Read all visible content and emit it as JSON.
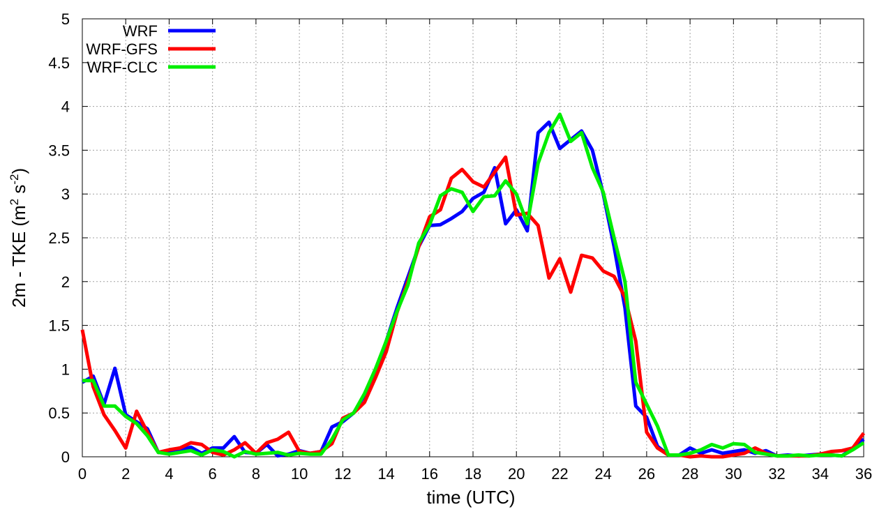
{
  "chart_data": {
    "type": "line",
    "xlabel": "time (UTC)",
    "ylabel_parts": {
      "prefix": "2m - TKE (m",
      "sup1": "2",
      "mid": " s",
      "sup2": "-2",
      "suffix": ")"
    },
    "xlim": [
      0,
      36
    ],
    "ylim": [
      0,
      5
    ],
    "xticks": [
      "0",
      "2",
      "4",
      "6",
      "8",
      "10",
      "12",
      "14",
      "16",
      "18",
      "20",
      "22",
      "24",
      "26",
      "28",
      "30",
      "32",
      "34",
      "36"
    ],
    "yticks": [
      "0",
      "0.5",
      "1",
      "1.5",
      "2",
      "2.5",
      "3",
      "3.5",
      "4",
      "4.5",
      "5"
    ],
    "grid": true,
    "legend_position": "top-left",
    "series": [
      {
        "name": "WRF",
        "color": "#0000ff",
        "x": [
          0,
          0.5,
          1,
          1.5,
          2,
          2.5,
          3,
          3.5,
          4,
          4.5,
          5,
          5.5,
          6,
          6.5,
          7,
          7.5,
          8,
          8.5,
          9,
          9.5,
          10,
          10.5,
          11,
          11.5,
          12,
          12.5,
          13,
          13.5,
          14,
          14.5,
          15,
          15.5,
          16,
          16.5,
          17,
          17.5,
          18,
          18.5,
          19,
          19.5,
          20,
          20.5,
          21,
          21.5,
          22,
          22.5,
          23,
          23.5,
          24,
          24.5,
          25,
          25.5,
          26,
          26.5,
          27,
          27.5,
          28,
          28.5,
          29,
          29.5,
          30,
          30.5,
          31,
          31.5,
          32,
          32.5,
          33,
          33.5,
          34,
          34.5,
          35,
          35.5,
          36
        ],
        "values": [
          0.85,
          0.92,
          0.6,
          1.01,
          0.48,
          0.4,
          0.32,
          0.05,
          0.06,
          0.08,
          0.11,
          0.04,
          0.1,
          0.1,
          0.23,
          0.05,
          0.04,
          0.14,
          0.01,
          0.03,
          0.07,
          0.04,
          0.06,
          0.34,
          0.4,
          0.5,
          0.7,
          0.95,
          1.32,
          1.7,
          2.05,
          2.4,
          2.64,
          2.65,
          2.72,
          2.8,
          2.95,
          3.02,
          3.3,
          2.66,
          2.82,
          2.58,
          3.7,
          3.82,
          3.52,
          3.62,
          3.72,
          3.5,
          3.0,
          2.4,
          1.7,
          0.58,
          0.45,
          0.12,
          0.02,
          0.02,
          0.1,
          0.04,
          0.08,
          0.04,
          0.06,
          0.08,
          0.04,
          0.07,
          0.01,
          0.02,
          0.01,
          0.02,
          0.03,
          0.02,
          0.01,
          0.1,
          0.2
        ]
      },
      {
        "name": "WRF-GFS",
        "color": "#ff0000",
        "x": [
          0,
          0.5,
          1,
          1.5,
          2,
          2.5,
          3,
          3.5,
          4,
          4.5,
          5,
          5.5,
          6,
          6.5,
          7,
          7.5,
          8,
          8.5,
          9,
          9.5,
          10,
          10.5,
          11,
          11.5,
          12,
          12.5,
          13,
          13.5,
          14,
          14.5,
          15,
          15.5,
          16,
          16.5,
          17,
          17.5,
          18,
          18.5,
          19,
          19.5,
          20,
          20.5,
          21,
          21.5,
          22,
          22.5,
          23,
          23.5,
          24,
          24.5,
          25,
          25.5,
          26,
          26.5,
          27,
          27.5,
          28,
          28.5,
          29,
          29.5,
          30,
          30.5,
          31,
          31.5,
          32,
          32.5,
          33,
          33.5,
          34,
          34.5,
          35,
          35.5,
          36
        ],
        "values": [
          1.45,
          0.8,
          0.48,
          0.3,
          0.1,
          0.52,
          0.28,
          0.05,
          0.08,
          0.1,
          0.16,
          0.14,
          0.05,
          0.02,
          0.08,
          0.16,
          0.04,
          0.16,
          0.2,
          0.28,
          0.06,
          0.04,
          0.06,
          0.15,
          0.44,
          0.5,
          0.62,
          0.9,
          1.2,
          1.65,
          2.0,
          2.4,
          2.74,
          2.82,
          3.18,
          3.28,
          3.14,
          3.08,
          3.25,
          3.42,
          2.76,
          2.78,
          2.64,
          2.04,
          2.26,
          1.88,
          2.3,
          2.27,
          2.12,
          2.06,
          1.82,
          1.32,
          0.28,
          0.1,
          0.02,
          0.02,
          0.0,
          0.01,
          0.0,
          0.0,
          0.02,
          0.04,
          0.1,
          0.04,
          0.01,
          0.01,
          0.01,
          0.01,
          0.03,
          0.06,
          0.07,
          0.1,
          0.27
        ]
      },
      {
        "name": "WRF-CLC",
        "color": "#00ee00",
        "x": [
          0,
          0.5,
          1,
          1.5,
          2,
          2.5,
          3,
          3.5,
          4,
          4.5,
          5,
          5.5,
          6,
          6.5,
          7,
          7.5,
          8,
          8.5,
          9,
          9.5,
          10,
          10.5,
          11,
          11.5,
          12,
          12.5,
          13,
          13.5,
          14,
          14.5,
          15,
          15.5,
          16,
          16.5,
          17,
          17.5,
          18,
          18.5,
          19,
          19.5,
          20,
          20.5,
          21,
          21.5,
          22,
          22.5,
          23,
          23.5,
          24,
          24.5,
          25,
          25.5,
          26,
          26.5,
          27,
          27.5,
          28,
          28.5,
          29,
          29.5,
          30,
          30.5,
          31,
          31.5,
          32,
          32.5,
          33,
          33.5,
          34,
          34.5,
          35,
          35.5,
          36
        ],
        "values": [
          0.87,
          0.87,
          0.58,
          0.58,
          0.46,
          0.38,
          0.24,
          0.05,
          0.03,
          0.05,
          0.07,
          0.02,
          0.08,
          0.06,
          0.0,
          0.06,
          0.03,
          0.04,
          0.05,
          0.02,
          0.04,
          0.03,
          0.03,
          0.2,
          0.42,
          0.5,
          0.72,
          1.0,
          1.32,
          1.66,
          1.96,
          2.44,
          2.65,
          2.98,
          3.06,
          3.02,
          2.8,
          2.97,
          2.98,
          3.15,
          3.0,
          2.66,
          3.35,
          3.7,
          3.91,
          3.6,
          3.7,
          3.3,
          3.02,
          2.5,
          2.0,
          0.85,
          0.6,
          0.35,
          0.02,
          0.02,
          0.04,
          0.08,
          0.14,
          0.1,
          0.15,
          0.14,
          0.05,
          0.03,
          0.01,
          0.01,
          0.02,
          0.01,
          0.02,
          0.02,
          0.01,
          0.08,
          0.16
        ]
      }
    ]
  }
}
